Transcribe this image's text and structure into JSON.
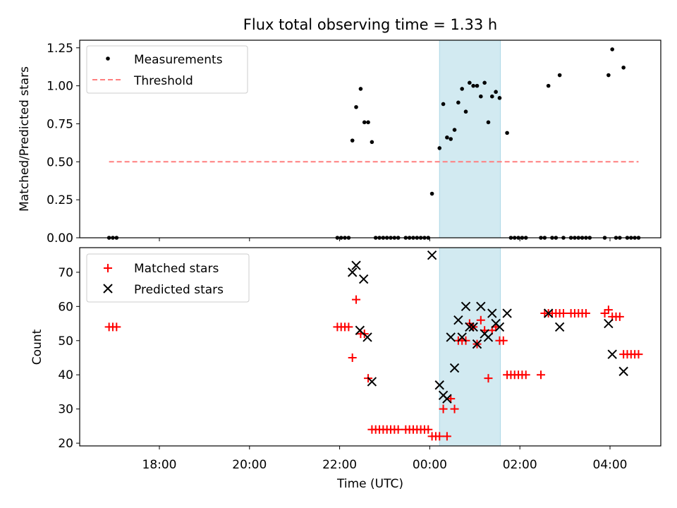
{
  "chart_data": {
    "type": "scatter",
    "title": "Flux total observing time = 1.33 h",
    "xlabel": "Time (UTC)",
    "x_ticks": [
      "18:00",
      "20:00",
      "22:00",
      "00:00",
      "02:00",
      "04:00"
    ],
    "highlight_span": [
      "00:13",
      "01:34"
    ],
    "panels": [
      {
        "name": "ratio",
        "ylabel": "Matched/Predicted stars",
        "ylim": [
          0,
          1.3
        ],
        "yticks": [
          "0.00",
          "0.25",
          "0.50",
          "0.75",
          "1.00",
          "1.25"
        ],
        "legend_position": "top-left",
        "series": [
          {
            "name": "Measurements",
            "marker": "dot",
            "color": "#000000",
            "points": [
              [
                "16:53",
                0
              ],
              [
                "16:58",
                0
              ],
              [
                "17:03",
                0
              ],
              [
                "21:57",
                0
              ],
              [
                "22:02",
                0
              ],
              [
                "22:07",
                0
              ],
              [
                "22:12",
                0
              ],
              [
                "22:17",
                0.64
              ],
              [
                "22:22",
                0.86
              ],
              [
                "22:28",
                0.98
              ],
              [
                "22:33",
                0.76
              ],
              [
                "22:38",
                0.76
              ],
              [
                "22:43",
                0.63
              ],
              [
                "22:48",
                0
              ],
              [
                "22:53",
                0
              ],
              [
                "22:58",
                0
              ],
              [
                "23:03",
                0
              ],
              [
                "23:08",
                0
              ],
              [
                "23:13",
                0
              ],
              [
                "23:18",
                0
              ],
              [
                "23:28",
                0
              ],
              [
                "23:33",
                0
              ],
              [
                "23:38",
                0
              ],
              [
                "23:43",
                0
              ],
              [
                "23:48",
                0
              ],
              [
                "23:53",
                0
              ],
              [
                "23:58",
                0
              ],
              [
                "00:03",
                0.29
              ],
              [
                "00:13",
                0.59
              ],
              [
                "00:18",
                0.88
              ],
              [
                "00:23",
                0.66
              ],
              [
                "00:28",
                0.65
              ],
              [
                "00:33",
                0.71
              ],
              [
                "00:38",
                0.89
              ],
              [
                "00:43",
                0.98
              ],
              [
                "00:48",
                0.83
              ],
              [
                "00:53",
                1.02
              ],
              [
                "00:58",
                1.0
              ],
              [
                "01:03",
                1.0
              ],
              [
                "01:08",
                0.93
              ],
              [
                "01:13",
                1.02
              ],
              [
                "01:18",
                0.76
              ],
              [
                "01:23",
                0.93
              ],
              [
                "01:28",
                0.96
              ],
              [
                "01:33",
                0.92
              ],
              [
                "01:43",
                0.69
              ],
              [
                "01:48",
                0
              ],
              [
                "01:53",
                0
              ],
              [
                "01:58",
                0
              ],
              [
                "02:03",
                0
              ],
              [
                "02:08",
                0
              ],
              [
                "02:28",
                0
              ],
              [
                "02:33",
                0
              ],
              [
                "02:38",
                1.0
              ],
              [
                "02:43",
                0
              ],
              [
                "02:48",
                0
              ],
              [
                "02:53",
                1.07
              ],
              [
                "02:58",
                0
              ],
              [
                "03:08",
                0
              ],
              [
                "03:13",
                0
              ],
              [
                "03:18",
                0
              ],
              [
                "03:23",
                0
              ],
              [
                "03:28",
                0
              ],
              [
                "03:33",
                0
              ],
              [
                "03:53",
                0
              ],
              [
                "03:58",
                1.07
              ],
              [
                "04:03",
                1.24
              ],
              [
                "04:08",
                0
              ],
              [
                "04:13",
                0
              ],
              [
                "04:18",
                1.12
              ],
              [
                "04:23",
                0
              ],
              [
                "04:28",
                0
              ],
              [
                "04:33",
                0
              ],
              [
                "04:38",
                0
              ]
            ]
          },
          {
            "name": "Threshold",
            "marker": "dashed-line",
            "color": "#ff7f7f",
            "points": [
              [
                "16:53",
                0.5
              ],
              [
                "04:38",
                0.5
              ]
            ]
          }
        ]
      },
      {
        "name": "counts",
        "ylabel": "Count",
        "ylim": [
          19.2,
          77.2
        ],
        "yticks": [
          "20",
          "30",
          "40",
          "50",
          "60",
          "70"
        ],
        "legend_position": "top-left",
        "series": [
          {
            "name": "Matched stars",
            "marker": "plus",
            "color": "#ff0000",
            "points": [
              [
                "16:53",
                54
              ],
              [
                "16:58",
                54
              ],
              [
                "17:03",
                54
              ],
              [
                "21:57",
                54
              ],
              [
                "22:02",
                54
              ],
              [
                "22:07",
                54
              ],
              [
                "22:12",
                54
              ],
              [
                "22:17",
                45
              ],
              [
                "22:22",
                62
              ],
              [
                "22:28",
                52
              ],
              [
                "22:33",
                52
              ],
              [
                "22:38",
                39
              ],
              [
                "22:43",
                24
              ],
              [
                "22:48",
                24
              ],
              [
                "22:53",
                24
              ],
              [
                "22:58",
                24
              ],
              [
                "23:03",
                24
              ],
              [
                "23:08",
                24
              ],
              [
                "23:13",
                24
              ],
              [
                "23:18",
                24
              ],
              [
                "23:28",
                24
              ],
              [
                "23:33",
                24
              ],
              [
                "23:38",
                24
              ],
              [
                "23:43",
                24
              ],
              [
                "23:48",
                24
              ],
              [
                "23:53",
                24
              ],
              [
                "23:58",
                24
              ],
              [
                "00:03",
                22
              ],
              [
                "00:08",
                22
              ],
              [
                "00:13",
                22
              ],
              [
                "00:18",
                30
              ],
              [
                "00:23",
                22
              ],
              [
                "00:28",
                33
              ],
              [
                "00:33",
                30
              ],
              [
                "00:38",
                50
              ],
              [
                "00:43",
                50
              ],
              [
                "00:48",
                50
              ],
              [
                "00:53",
                55
              ],
              [
                "00:58",
                54
              ],
              [
                "01:03",
                49
              ],
              [
                "01:08",
                56
              ],
              [
                "01:13",
                53
              ],
              [
                "01:18",
                39
              ],
              [
                "01:23",
                53
              ],
              [
                "01:28",
                54
              ],
              [
                "01:33",
                50
              ],
              [
                "01:38",
                50
              ],
              [
                "01:43",
                40
              ],
              [
                "01:48",
                40
              ],
              [
                "01:53",
                40
              ],
              [
                "01:58",
                40
              ],
              [
                "02:03",
                40
              ],
              [
                "02:08",
                40
              ],
              [
                "02:28",
                40
              ],
              [
                "02:33",
                58
              ],
              [
                "02:38",
                58
              ],
              [
                "02:43",
                58
              ],
              [
                "02:48",
                58
              ],
              [
                "02:53",
                58
              ],
              [
                "02:58",
                58
              ],
              [
                "03:08",
                58
              ],
              [
                "03:13",
                58
              ],
              [
                "03:18",
                58
              ],
              [
                "03:23",
                58
              ],
              [
                "03:28",
                58
              ],
              [
                "03:53",
                58
              ],
              [
                "03:58",
                59
              ],
              [
                "04:03",
                57
              ],
              [
                "04:08",
                57
              ],
              [
                "04:13",
                57
              ],
              [
                "04:18",
                46
              ],
              [
                "04:23",
                46
              ],
              [
                "04:28",
                46
              ],
              [
                "04:33",
                46
              ],
              [
                "04:38",
                46
              ]
            ]
          },
          {
            "name": "Predicted stars",
            "marker": "x",
            "color": "#000000",
            "points": [
              [
                "22:17",
                70
              ],
              [
                "22:22",
                72
              ],
              [
                "22:27",
                53
              ],
              [
                "22:32",
                68
              ],
              [
                "22:37",
                51
              ],
              [
                "22:43",
                38
              ],
              [
                "00:03",
                75
              ],
              [
                "00:13",
                37
              ],
              [
                "00:18",
                34
              ],
              [
                "00:23",
                33
              ],
              [
                "00:28",
                51
              ],
              [
                "00:33",
                42
              ],
              [
                "00:38",
                56
              ],
              [
                "00:43",
                51
              ],
              [
                "00:48",
                60
              ],
              [
                "00:53",
                54
              ],
              [
                "00:58",
                54
              ],
              [
                "01:03",
                49
              ],
              [
                "01:08",
                60
              ],
              [
                "01:13",
                52
              ],
              [
                "01:18",
                51
              ],
              [
                "01:23",
                58
              ],
              [
                "01:28",
                55
              ],
              [
                "01:33",
                54
              ],
              [
                "01:43",
                58
              ],
              [
                "02:38",
                58
              ],
              [
                "02:53",
                54
              ],
              [
                "03:58",
                55
              ],
              [
                "04:03",
                46
              ],
              [
                "04:18",
                41
              ]
            ]
          }
        ]
      }
    ]
  }
}
